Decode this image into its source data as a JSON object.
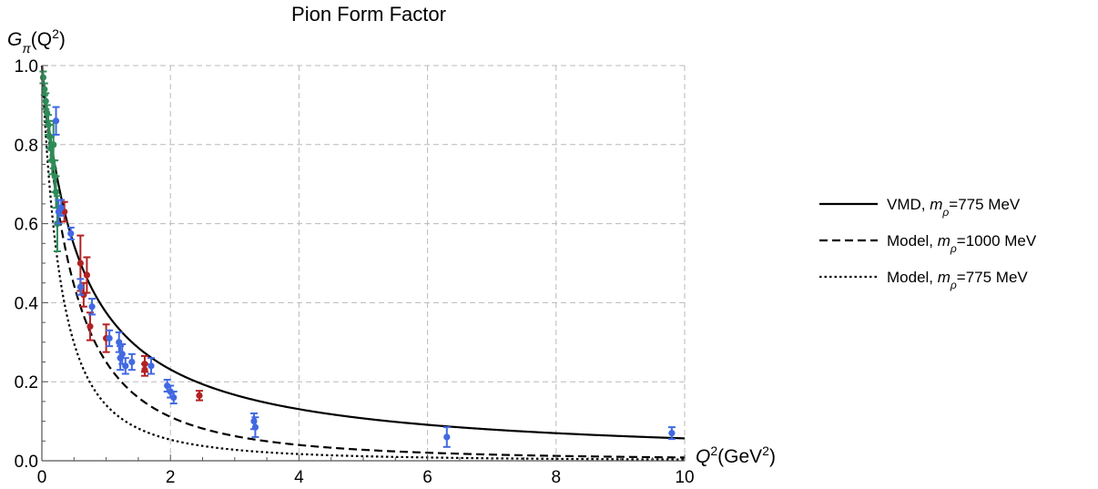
{
  "chart_data": {
    "type": "scatter",
    "title": "Pion Form Factor",
    "ylabel": {
      "base": "G",
      "sub": "π",
      "arg_open": "(Q",
      "sup": "2",
      "arg_close": ")"
    },
    "xlabel": {
      "base": "Q",
      "sup": "2",
      "paren_open": "(GeV",
      "unit_sup": "2",
      "paren_close": ")"
    },
    "xlim": [
      0,
      10
    ],
    "ylim": [
      0,
      1.0
    ],
    "x_ticks": [
      0,
      2,
      4,
      6,
      8,
      10
    ],
    "x_tick_labels": [
      "0",
      "2",
      "4",
      "6",
      "8",
      "10"
    ],
    "y_ticks": [
      0.0,
      0.2,
      0.4,
      0.6,
      0.8,
      1.0
    ],
    "y_tick_labels": [
      "0.0",
      "0.2",
      "0.4",
      "0.6",
      "0.8",
      "1.0"
    ],
    "grid": true,
    "legend_position": "right",
    "curves": [
      {
        "name": "VMD, m_ρ=775 MeV",
        "label_pre": "VMD, ",
        "label_sym": "m",
        "label_sub": "ρ",
        "label_post": "=775 MeV",
        "model": "vmd",
        "mass_gev": 0.775,
        "style": "solid",
        "color": "#000000"
      },
      {
        "name": "Model, m_ρ=1000 MeV",
        "label_pre": "Model, ",
        "label_sym": "m",
        "label_sub": "ρ",
        "label_post": "=1000 MeV",
        "model": "model",
        "mass_gev": 1.0,
        "style": "dashed",
        "color": "#000000"
      },
      {
        "name": "Model, m_ρ=775 MeV",
        "label_pre": "Model, ",
        "label_sym": "m",
        "label_sub": "ρ",
        "label_post": "=775 MeV",
        "model": "model",
        "mass_gev": 0.775,
        "style": "dotted",
        "color": "#000000"
      }
    ],
    "data_series": [
      {
        "color": "#2e8b57",
        "points": [
          {
            "x": 0.02,
            "y": 0.97,
            "err": 0.015
          },
          {
            "x": 0.04,
            "y": 0.94,
            "err": 0.015
          },
          {
            "x": 0.06,
            "y": 0.91,
            "err": 0.02
          },
          {
            "x": 0.08,
            "y": 0.88,
            "err": 0.02
          },
          {
            "x": 0.1,
            "y": 0.85,
            "err": 0.025
          },
          {
            "x": 0.12,
            "y": 0.82,
            "err": 0.03
          },
          {
            "x": 0.14,
            "y": 0.79,
            "err": 0.03
          },
          {
            "x": 0.16,
            "y": 0.76,
            "err": 0.035
          },
          {
            "x": 0.18,
            "y": 0.8,
            "err": 0.06
          },
          {
            "x": 0.2,
            "y": 0.72,
            "err": 0.04
          },
          {
            "x": 0.22,
            "y": 0.68,
            "err": 0.04
          },
          {
            "x": 0.24,
            "y": 0.6,
            "err": 0.07
          }
        ]
      },
      {
        "color": "#b22222",
        "points": [
          {
            "x": 0.35,
            "y": 0.63,
            "err": 0.025
          },
          {
            "x": 0.6,
            "y": 0.5,
            "err": 0.07
          },
          {
            "x": 0.65,
            "y": 0.42,
            "err": 0.03
          },
          {
            "x": 0.7,
            "y": 0.47,
            "err": 0.045
          },
          {
            "x": 0.75,
            "y": 0.34,
            "err": 0.035
          },
          {
            "x": 1.0,
            "y": 0.31,
            "err": 0.035
          },
          {
            "x": 1.6,
            "y": 0.245,
            "err": 0.02
          },
          {
            "x": 1.6,
            "y": 0.23,
            "err": 0.015
          },
          {
            "x": 2.45,
            "y": 0.165,
            "err": 0.012
          }
        ]
      },
      {
        "color": "#4169e1",
        "points": [
          {
            "x": 0.22,
            "y": 0.86,
            "err": 0.035
          },
          {
            "x": 0.26,
            "y": 0.63,
            "err": 0.03
          },
          {
            "x": 0.3,
            "y": 0.64,
            "err": 0.02
          },
          {
            "x": 0.45,
            "y": 0.575,
            "err": 0.015
          },
          {
            "x": 0.6,
            "y": 0.44,
            "err": 0.02
          },
          {
            "x": 0.78,
            "y": 0.39,
            "err": 0.02
          },
          {
            "x": 1.05,
            "y": 0.31,
            "err": 0.02
          },
          {
            "x": 1.2,
            "y": 0.3,
            "err": 0.025
          },
          {
            "x": 1.22,
            "y": 0.26,
            "err": 0.03
          },
          {
            "x": 1.25,
            "y": 0.27,
            "err": 0.025
          },
          {
            "x": 1.3,
            "y": 0.24,
            "err": 0.02
          },
          {
            "x": 1.4,
            "y": 0.25,
            "err": 0.02
          },
          {
            "x": 1.7,
            "y": 0.24,
            "err": 0.02
          },
          {
            "x": 1.95,
            "y": 0.19,
            "err": 0.015
          },
          {
            "x": 2.0,
            "y": 0.175,
            "err": 0.015
          },
          {
            "x": 2.05,
            "y": 0.16,
            "err": 0.015
          },
          {
            "x": 3.3,
            "y": 0.1,
            "err": 0.02
          },
          {
            "x": 3.32,
            "y": 0.085,
            "err": 0.025
          },
          {
            "x": 6.3,
            "y": 0.06,
            "err": 0.025
          },
          {
            "x": 9.8,
            "y": 0.07,
            "err": 0.015
          }
        ]
      }
    ]
  }
}
